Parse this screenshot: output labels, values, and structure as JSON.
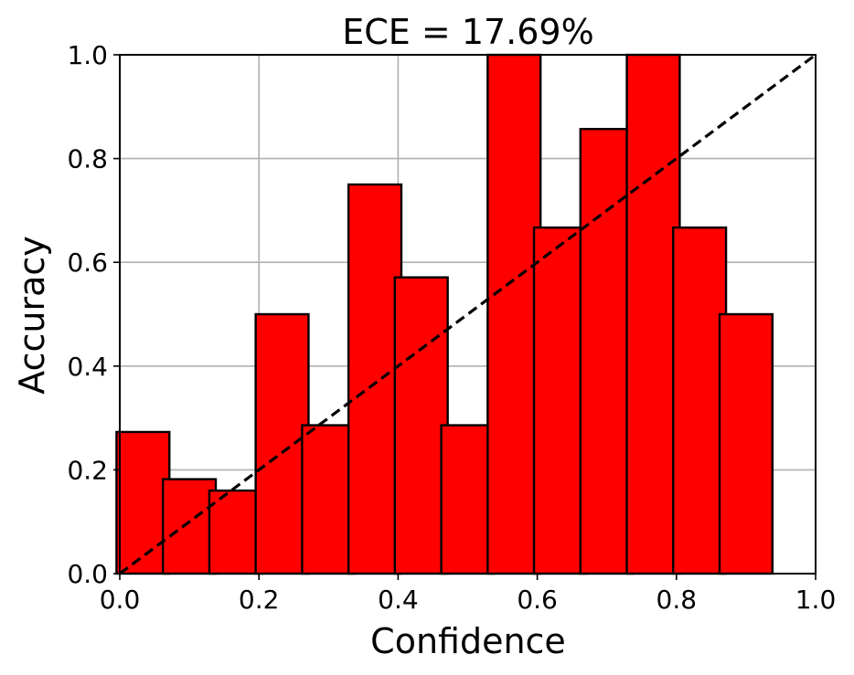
{
  "chart_data": {
    "type": "bar",
    "title": "ECE = 17.69%",
    "xlabel": "Confidence",
    "ylabel": "Accuracy",
    "xlim": [
      0.0,
      1.0
    ],
    "ylim": [
      0.0,
      1.0
    ],
    "grid": true,
    "bar_width": 0.05,
    "x": [
      0.0333,
      0.1,
      0.1667,
      0.2333,
      0.3,
      0.3667,
      0.4333,
      0.5,
      0.5667,
      0.6333,
      0.7,
      0.7667,
      0.8333,
      0.9
    ],
    "values": [
      0.273,
      0.182,
      0.16,
      0.5,
      0.286,
      0.75,
      0.571,
      0.286,
      1.0,
      0.667,
      0.857,
      1.0,
      0.667,
      0.5
    ],
    "x_ticks": [
      "0.0",
      "0.2",
      "0.4",
      "0.6",
      "0.8",
      "1.0"
    ],
    "y_ticks": [
      "0.0",
      "0.2",
      "0.4",
      "0.6",
      "0.8",
      "1.0"
    ],
    "reference_line": {
      "from": [
        0.0,
        0.0
      ],
      "to": [
        1.0,
        1.0
      ],
      "style": "dashed"
    },
    "colors": {
      "bar_fill": "#ff0000",
      "bar_edge": "#000000",
      "grid": "#b0b0b0",
      "reference": "#000000"
    }
  }
}
